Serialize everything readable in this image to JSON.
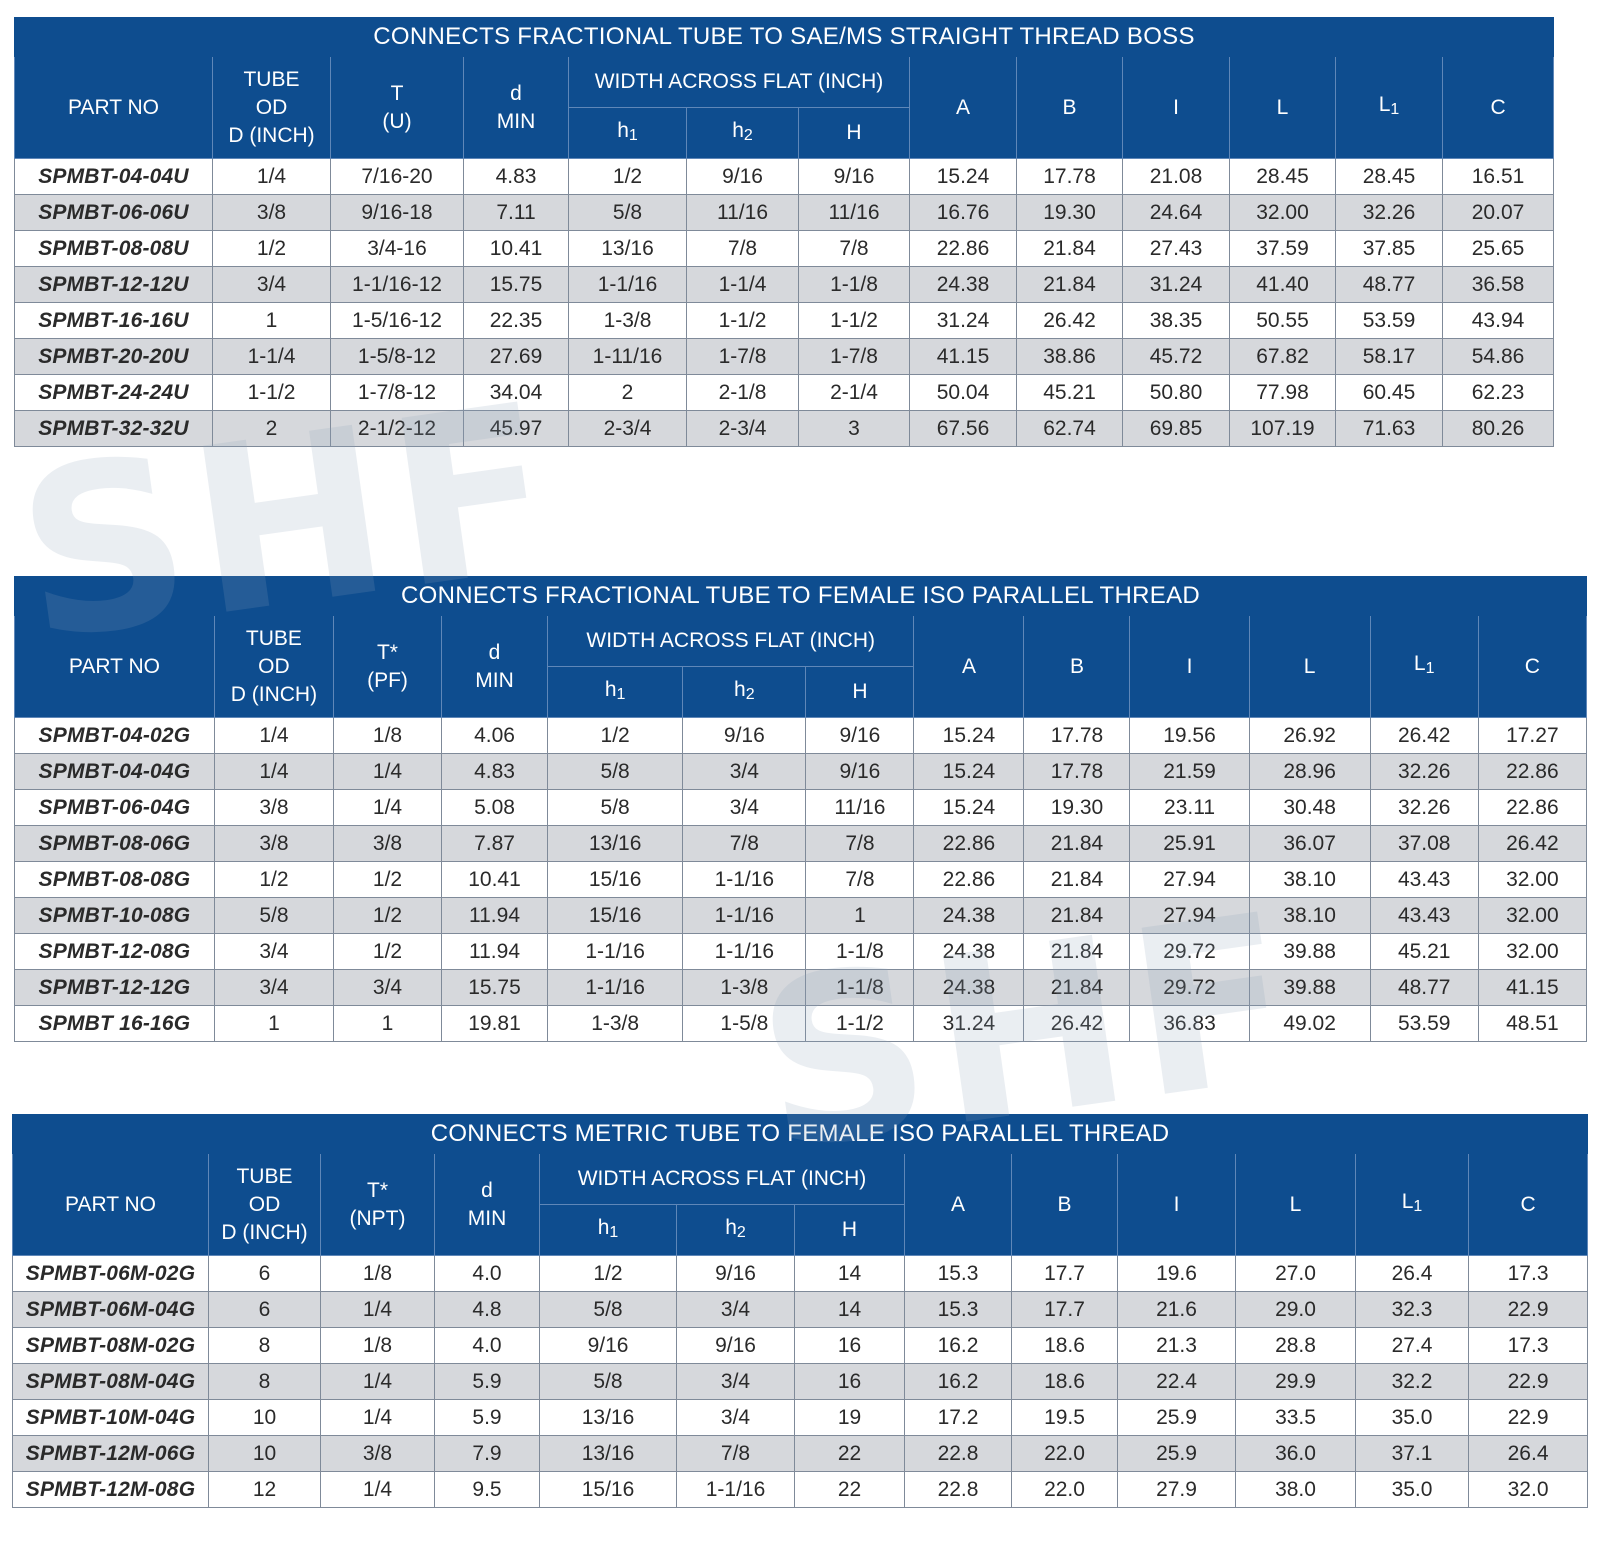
{
  "watermark": {
    "text": "SHF"
  },
  "tables": [
    {
      "title": "CONNECTS FRACTIONAL TUBE TO SAE/MS STRAIGHT THREAD BOSS",
      "headers": {
        "part_no": "PART NO",
        "tube_od": [
          "TUBE",
          "OD",
          "D (INCH)"
        ],
        "t": [
          "T",
          "(U)"
        ],
        "d": [
          "d",
          "MIN"
        ],
        "width_across_flat": "WIDTH ACROSS FLAT (INCH)",
        "h1": "h",
        "h1_sub": "1",
        "h2": "h",
        "h2_sub": "2",
        "H": "H",
        "A": "A",
        "B": "B",
        "I": "I",
        "L": "L",
        "L1": "L",
        "L1_sub": "1",
        "C": "C"
      },
      "rows": [
        [
          "SPMBT-04-04U",
          "1/4",
          "7/16-20",
          "4.83",
          "1/2",
          "9/16",
          "9/16",
          "15.24",
          "17.78",
          "21.08",
          "28.45",
          "28.45",
          "16.51"
        ],
        [
          "SPMBT-06-06U",
          "3/8",
          "9/16-18",
          "7.11",
          "5/8",
          "11/16",
          "11/16",
          "16.76",
          "19.30",
          "24.64",
          "32.00",
          "32.26",
          "20.07"
        ],
        [
          "SPMBT-08-08U",
          "1/2",
          "3/4-16",
          "10.41",
          "13/16",
          "7/8",
          "7/8",
          "22.86",
          "21.84",
          "27.43",
          "37.59",
          "37.85",
          "25.65"
        ],
        [
          "SPMBT-12-12U",
          "3/4",
          "1-1/16-12",
          "15.75",
          "1-1/16",
          "1-1/4",
          "1-1/8",
          "24.38",
          "21.84",
          "31.24",
          "41.40",
          "48.77",
          "36.58"
        ],
        [
          "SPMBT-16-16U",
          "1",
          "1-5/16-12",
          "22.35",
          "1-3/8",
          "1-1/2",
          "1-1/2",
          "31.24",
          "26.42",
          "38.35",
          "50.55",
          "53.59",
          "43.94"
        ],
        [
          "SPMBT-20-20U",
          "1-1/4",
          "1-5/8-12",
          "27.69",
          "1-11/16",
          "1-7/8",
          "1-7/8",
          "41.15",
          "38.86",
          "45.72",
          "67.82",
          "58.17",
          "54.86"
        ],
        [
          "SPMBT-24-24U",
          "1-1/2",
          "1-7/8-12",
          "34.04",
          "2",
          "2-1/8",
          "2-1/4",
          "50.04",
          "45.21",
          "50.80",
          "77.98",
          "60.45",
          "62.23"
        ],
        [
          "SPMBT-32-32U",
          "2",
          "2-1/2-12",
          "45.97",
          "2-3/4",
          "2-3/4",
          "3",
          "67.56",
          "62.74",
          "69.85",
          "107.19",
          "71.63",
          "80.26"
        ]
      ]
    },
    {
      "title": "CONNECTS FRACTIONAL TUBE TO FEMALE ISO PARALLEL THREAD",
      "headers": {
        "part_no": "PART NO",
        "tube_od": [
          "TUBE",
          "OD",
          "D (INCH)"
        ],
        "t": [
          "T*",
          "(PF)"
        ],
        "d": [
          "d",
          "MIN"
        ],
        "width_across_flat": "WIDTH ACROSS FLAT (INCH)",
        "h1": "h",
        "h1_sub": "1",
        "h2": "h",
        "h2_sub": "2",
        "H": "H",
        "A": "A",
        "B": "B",
        "I": "I",
        "L": "L",
        "L1": "L",
        "L1_sub": "1",
        "C": "C"
      },
      "rows": [
        [
          "SPMBT-04-02G",
          "1/4",
          "1/8",
          "4.06",
          "1/2",
          "9/16",
          "9/16",
          "15.24",
          "17.78",
          "19.56",
          "26.92",
          "26.42",
          "17.27"
        ],
        [
          "SPMBT-04-04G",
          "1/4",
          "1/4",
          "4.83",
          "5/8",
          "3/4",
          "9/16",
          "15.24",
          "17.78",
          "21.59",
          "28.96",
          "32.26",
          "22.86"
        ],
        [
          "SPMBT-06-04G",
          "3/8",
          "1/4",
          "5.08",
          "5/8",
          "3/4",
          "11/16",
          "15.24",
          "19.30",
          "23.11",
          "30.48",
          "32.26",
          "22.86"
        ],
        [
          "SPMBT-08-06G",
          "3/8",
          "3/8",
          "7.87",
          "13/16",
          "7/8",
          "7/8",
          "22.86",
          "21.84",
          "25.91",
          "36.07",
          "37.08",
          "26.42"
        ],
        [
          "SPMBT-08-08G",
          "1/2",
          "1/2",
          "10.41",
          "15/16",
          "1-1/16",
          "7/8",
          "22.86",
          "21.84",
          "27.94",
          "38.10",
          "43.43",
          "32.00"
        ],
        [
          "SPMBT-10-08G",
          "5/8",
          "1/2",
          "11.94",
          "15/16",
          "1-1/16",
          "1",
          "24.38",
          "21.84",
          "27.94",
          "38.10",
          "43.43",
          "32.00"
        ],
        [
          "SPMBT-12-08G",
          "3/4",
          "1/2",
          "11.94",
          "1-1/16",
          "1-1/16",
          "1-1/8",
          "24.38",
          "21.84",
          "29.72",
          "39.88",
          "45.21",
          "32.00"
        ],
        [
          "SPMBT-12-12G",
          "3/4",
          "3/4",
          "15.75",
          "1-1/16",
          "1-3/8",
          "1-1/8",
          "24.38",
          "21.84",
          "29.72",
          "39.88",
          "48.77",
          "41.15"
        ],
        [
          "SPMBT 16-16G",
          "1",
          "1",
          "19.81",
          "1-3/8",
          "1-5/8",
          "1-1/2",
          "31.24",
          "26.42",
          "36.83",
          "49.02",
          "53.59",
          "48.51"
        ]
      ]
    },
    {
      "title": "CONNECTS METRIC TUBE TO FEMALE ISO PARALLEL THREAD",
      "headers": {
        "part_no": "PART NO",
        "tube_od": [
          "TUBE",
          "OD",
          "D (INCH)"
        ],
        "t": [
          "T*",
          "(NPT)"
        ],
        "d": [
          "d",
          "MIN"
        ],
        "width_across_flat": "WIDTH ACROSS FLAT (INCH)",
        "h1": "h",
        "h1_sub": "1",
        "h2": "h",
        "h2_sub": "2",
        "H": "H",
        "A": "A",
        "B": "B",
        "I": "I",
        "L": "L",
        "L1": "L",
        "L1_sub": "1",
        "C": "C"
      },
      "rows": [
        [
          "SPMBT-06M-02G",
          "6",
          "1/8",
          "4.0",
          "1/2",
          "9/16",
          "14",
          "15.3",
          "17.7",
          "19.6",
          "27.0",
          "26.4",
          "17.3"
        ],
        [
          "SPMBT-06M-04G",
          "6",
          "1/4",
          "4.8",
          "5/8",
          "3/4",
          "14",
          "15.3",
          "17.7",
          "21.6",
          "29.0",
          "32.3",
          "22.9"
        ],
        [
          "SPMBT-08M-02G",
          "8",
          "1/8",
          "4.0",
          "9/16",
          "9/16",
          "16",
          "16.2",
          "18.6",
          "21.3",
          "28.8",
          "27.4",
          "17.3"
        ],
        [
          "SPMBT-08M-04G",
          "8",
          "1/4",
          "5.9",
          "5/8",
          "3/4",
          "16",
          "16.2",
          "18.6",
          "22.4",
          "29.9",
          "32.2",
          "22.9"
        ],
        [
          "SPMBT-10M-04G",
          "10",
          "1/4",
          "5.9",
          "13/16",
          "3/4",
          "19",
          "17.2",
          "19.5",
          "25.9",
          "33.5",
          "35.0",
          "22.9"
        ],
        [
          "SPMBT-12M-06G",
          "10",
          "3/8",
          "7.9",
          "13/16",
          "7/8",
          "22",
          "22.8",
          "22.0",
          "25.9",
          "36.0",
          "37.1",
          "26.4"
        ],
        [
          "SPMBT-12M-08G",
          "12",
          "1/4",
          "9.5",
          "15/16",
          "1-1/16",
          "22",
          "22.8",
          "22.0",
          "27.9",
          "38.0",
          "35.0",
          "32.0"
        ]
      ]
    }
  ]
}
